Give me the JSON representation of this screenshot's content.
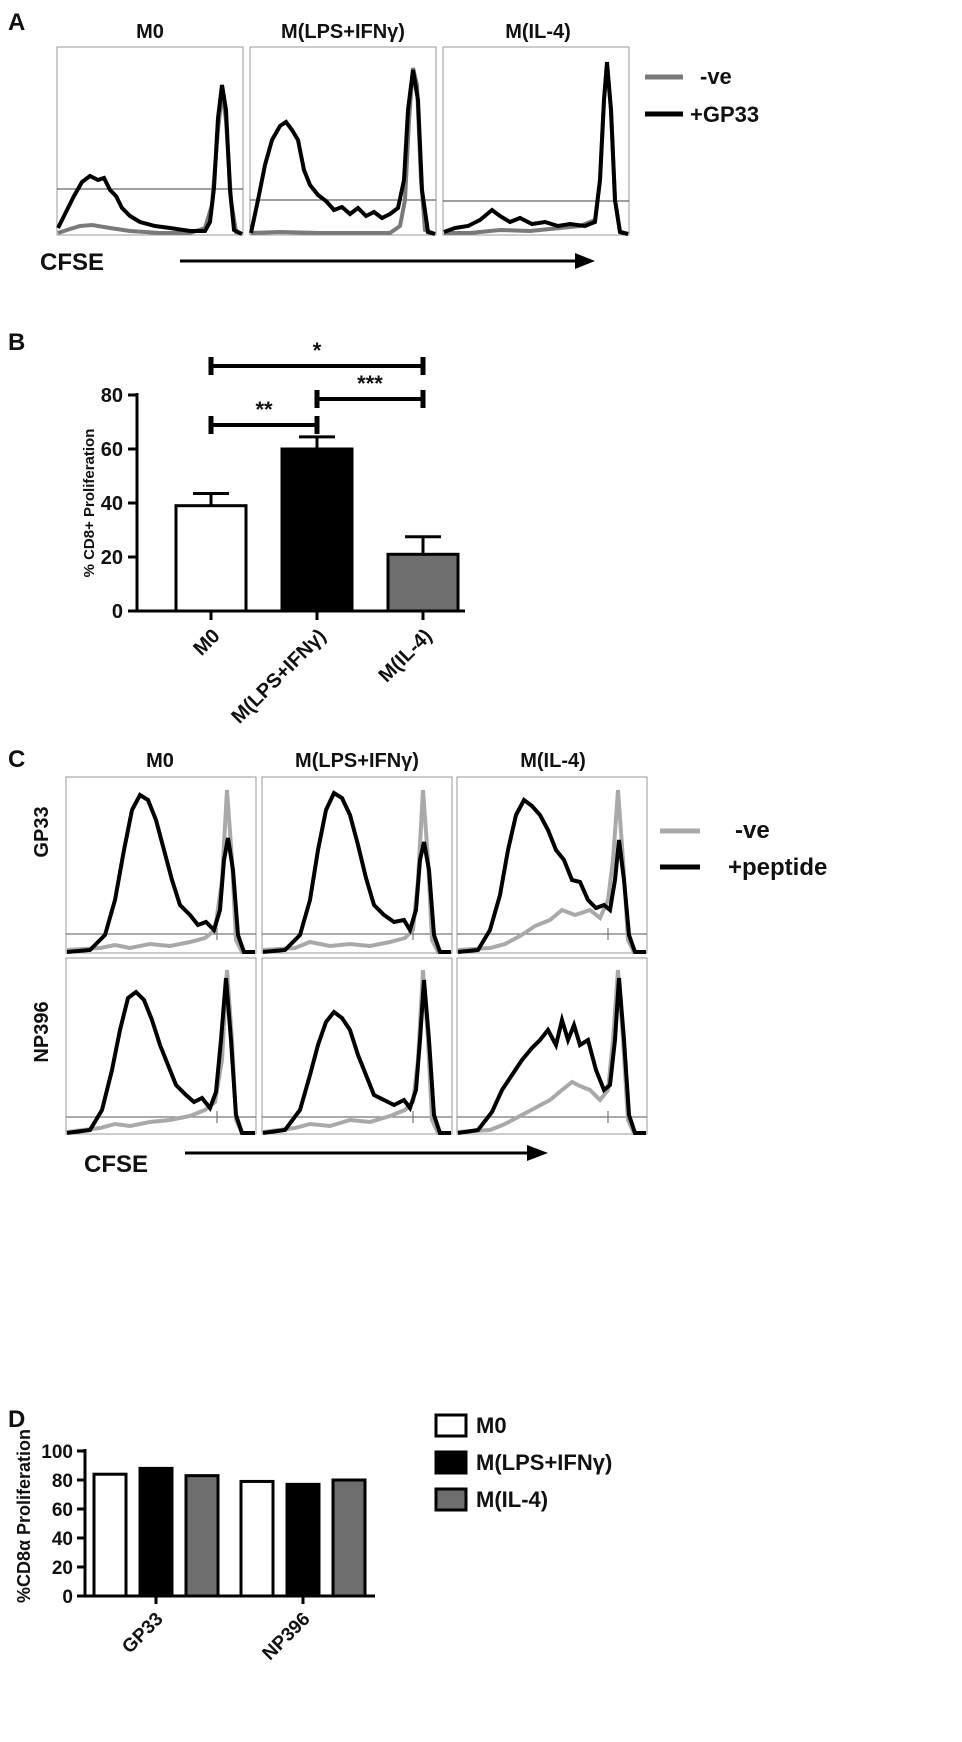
{
  "panels": {
    "a": {
      "letter": "A",
      "columns": [
        "M0",
        "M(LPS+IFNγ)",
        "M(IL-4)"
      ],
      "legend": [
        {
          "label": "-ve",
          "color": "#7a7a7a"
        },
        {
          "label": "+GP33",
          "color": "#000000"
        }
      ],
      "axis_label": "CFSE"
    },
    "b": {
      "letter": "B"
    },
    "c": {
      "letter": "C",
      "columns": [
        "M0",
        "M(LPS+IFNγ)",
        "M(IL-4)"
      ],
      "rows": [
        "GP33",
        "NP396"
      ],
      "legend": [
        {
          "label": "-ve",
          "color": "#a9a9a9"
        },
        {
          "label": "+peptide",
          "color": "#000000"
        }
      ],
      "axis_label": "CFSE"
    },
    "d": {
      "letter": "D"
    }
  },
  "chart_data": [
    {
      "type": "bar",
      "panel": "B",
      "categories": [
        "M0",
        "M(LPS+IFNγ)",
        "M(IL-4)"
      ],
      "values": [
        39,
        60,
        21
      ],
      "errors": [
        4.5,
        4.5,
        6.5
      ],
      "colors": [
        "#ffffff",
        "#000000",
        "#6e6e6e"
      ],
      "ylabel": "% CD8+ Proliferation",
      "ylim": [
        0,
        80
      ],
      "yticks": [
        0,
        20,
        40,
        60,
        80
      ],
      "significance": [
        {
          "from": 0,
          "to": 2,
          "label": "*"
        },
        {
          "from": 0,
          "to": 1,
          "label": "**"
        },
        {
          "from": 1,
          "to": 2,
          "label": "***"
        }
      ]
    },
    {
      "type": "bar",
      "panel": "D",
      "categories": [
        "GP33",
        "NP396"
      ],
      "series": [
        {
          "name": "M0",
          "color": "#ffffff",
          "values": [
            84,
            79
          ]
        },
        {
          "name": "M(LPS+IFNγ)",
          "color": "#000000",
          "values": [
            88,
            77
          ]
        },
        {
          "name": "M(IL-4)",
          "color": "#6e6e6e",
          "values": [
            83,
            80
          ]
        }
      ],
      "ylabel": "%CD8α Proliferation",
      "ylim": [
        0,
        100
      ],
      "yticks": [
        0,
        20,
        40,
        60,
        80,
        100
      ],
      "legend": "top-right"
    }
  ]
}
